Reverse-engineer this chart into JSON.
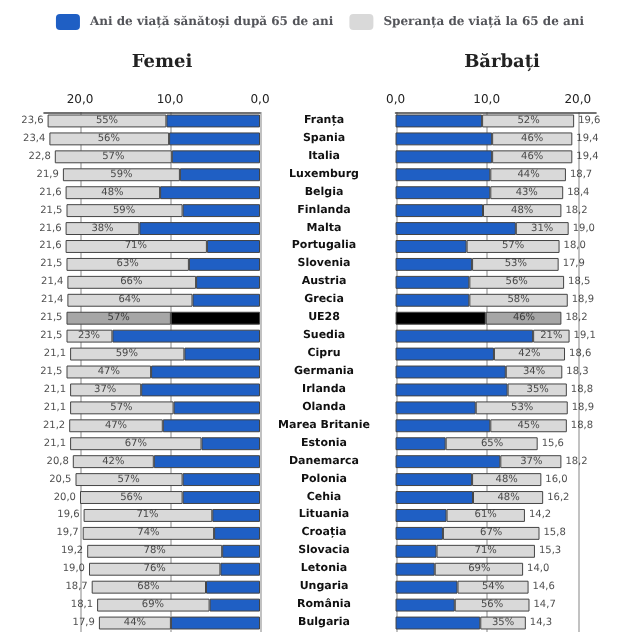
{
  "chart_data": [
    {
      "type": "bar",
      "title": "Femei",
      "orientation": "horizontal",
      "stacked": true,
      "grid": "x",
      "legend": "top",
      "categories": [
        "Franța",
        "Spania",
        "Italia",
        "Luxemburg",
        "Belgia",
        "Finlanda",
        "Malta",
        "Portugalia",
        "Slovenia",
        "Austria",
        "Grecia",
        "UE28",
        "Suedia",
        "Cipru",
        "Germania",
        "Irlanda",
        "Olanda",
        "Marea Britanie",
        "Estonia",
        "Danemarca",
        "Polonia",
        "Cehia",
        "Lituania",
        "Croația",
        "Slovacia",
        "Letonia",
        "Ungaria",
        "România",
        "Bulgaria"
      ],
      "xlim": [
        24,
        0
      ],
      "xticks": [
        {
          "value": 20,
          "label": "20,0"
        },
        {
          "value": 10,
          "label": "10,0"
        },
        {
          "value": 0,
          "label": "0,0"
        }
      ],
      "series": [
        {
          "name": "Ani de viață sănătoși după 65 de ani",
          "color": "#1f5fc4",
          "colors": [
            "#1f5fc4",
            "#1f5fc4",
            "#1f5fc4",
            "#1f5fc4",
            "#1f5fc4",
            "#1f5fc4",
            "#1f5fc4",
            "#1f5fc4",
            "#1f5fc4",
            "#1f5fc4",
            "#1f5fc4",
            "#000000",
            "#1f5fc4",
            "#1f5fc4",
            "#1f5fc4",
            "#1f5fc4",
            "#1f5fc4",
            "#1f5fc4",
            "#1f5fc4",
            "#1f5fc4",
            "#1f5fc4",
            "#1f5fc4",
            "#1f5fc4",
            "#1f5fc4",
            "#1f5fc4",
            "#1f5fc4",
            "#1f5fc4",
            "#1f5fc4",
            "#1f5fc4"
          ],
          "values": [
            10.4,
            10.1,
            9.8,
            8.9,
            11.1,
            8.6,
            13.4,
            5.9,
            7.9,
            7.1,
            7.5,
            9.9,
            16.4,
            8.4,
            12.1,
            13.2,
            9.6,
            10.8,
            6.5,
            11.8,
            8.6,
            8.6,
            5.3,
            5.1,
            4.2,
            4.4,
            6.0,
            5.6,
            9.9
          ]
        },
        {
          "name": "Speranța de viață la 65 de ani",
          "color": "#d9d9d9",
          "colors": [
            "#d9d9d9",
            "#d9d9d9",
            "#d9d9d9",
            "#d9d9d9",
            "#d9d9d9",
            "#d9d9d9",
            "#d9d9d9",
            "#d9d9d9",
            "#d9d9d9",
            "#d9d9d9",
            "#d9d9d9",
            "#a6a6a6",
            "#d9d9d9",
            "#d9d9d9",
            "#d9d9d9",
            "#d9d9d9",
            "#d9d9d9",
            "#d9d9d9",
            "#d9d9d9",
            "#d9d9d9",
            "#d9d9d9",
            "#d9d9d9",
            "#d9d9d9",
            "#d9d9d9",
            "#d9d9d9",
            "#d9d9d9",
            "#d9d9d9",
            "#d9d9d9",
            "#d9d9d9"
          ],
          "values": [
            13.2,
            13.3,
            13.0,
            13.0,
            10.5,
            12.9,
            8.2,
            15.7,
            13.6,
            14.3,
            13.9,
            11.6,
            5.1,
            12.7,
            9.4,
            7.9,
            11.5,
            10.4,
            14.6,
            9.0,
            11.9,
            11.4,
            14.3,
            14.6,
            15.0,
            14.6,
            12.7,
            12.5,
            8.0
          ]
        }
      ],
      "totals": [
        "23,6",
        "23,4",
        "22,8",
        "21,9",
        "21,6",
        "21,5",
        "21,6",
        "21,6",
        "21,5",
        "21,4",
        "21,4",
        "21,5",
        "21,5",
        "21,1",
        "21,5",
        "21,1",
        "21,1",
        "21,2",
        "21,1",
        "20,8",
        "20,5",
        "20,0",
        "19,6",
        "19,7",
        "19,2",
        "19,0",
        "18,7",
        "18,1",
        "17,9"
      ],
      "annotations": [
        {
          "text": "55%",
          "x": 17.0,
          "y": "Franța"
        },
        {
          "text": "56%",
          "x": 16.8,
          "y": "Spania"
        },
        {
          "text": "57%",
          "x": 16.3,
          "y": "Italia"
        },
        {
          "text": "59%",
          "x": 15.4,
          "y": "Luxemburg"
        },
        {
          "text": "48%",
          "x": 16.4,
          "y": "Belgia"
        },
        {
          "text": "59%",
          "x": 15.1,
          "y": "Finlanda"
        },
        {
          "text": "38%",
          "x": 17.5,
          "y": "Malta"
        },
        {
          "text": "71%",
          "x": 13.8,
          "y": "Portugalia"
        },
        {
          "text": "63%",
          "x": 14.7,
          "y": "Slovenia"
        },
        {
          "text": "66%",
          "x": 14.3,
          "y": "Austria"
        },
        {
          "text": "64%",
          "x": 14.5,
          "y": "Grecia"
        },
        {
          "text": "57%",
          "x": 15.7,
          "y": "UE28"
        },
        {
          "text": "23%",
          "x": 19.0,
          "y": "Suedia"
        },
        {
          "text": "59%",
          "x": 14.8,
          "y": "Cipru"
        },
        {
          "text": "47%",
          "x": 16.8,
          "y": "Germania"
        },
        {
          "text": "37%",
          "x": 17.2,
          "y": "Irlanda"
        },
        {
          "text": "57%",
          "x": 15.4,
          "y": "Olanda"
        },
        {
          "text": "47%",
          "x": 16.0,
          "y": "Marea Britanie"
        },
        {
          "text": "67%",
          "x": 13.8,
          "y": "Estonia"
        },
        {
          "text": "42%",
          "x": 16.3,
          "y": "Danemarca"
        },
        {
          "text": "57%",
          "x": 14.6,
          "y": "Polonia"
        },
        {
          "text": "56%",
          "x": 14.3,
          "y": "Cehia"
        },
        {
          "text": "71%",
          "x": 12.5,
          "y": "Lituania"
        },
        {
          "text": "74%",
          "x": 12.4,
          "y": "Croația"
        },
        {
          "text": "78%",
          "x": 11.7,
          "y": "Slovacia"
        },
        {
          "text": "76%",
          "x": 11.7,
          "y": "Letonia"
        },
        {
          "text": "68%",
          "x": 12.4,
          "y": "Ungaria"
        },
        {
          "text": "69%",
          "x": 11.9,
          "y": "România"
        },
        {
          "text": "44%",
          "x": 13.9,
          "y": "Bulgaria"
        }
      ]
    },
    {
      "type": "bar",
      "title": "Bărbați",
      "orientation": "horizontal",
      "stacked": true,
      "grid": "x",
      "tick_labels": "x",
      "categories": [
        "Franța",
        "Spania",
        "Italia",
        "Luxemburg",
        "Belgia",
        "Finlanda",
        "Malta",
        "Portugalia",
        "Slovenia",
        "Austria",
        "Grecia",
        "UE28",
        "Suedia",
        "Cipru",
        "Germania",
        "Irlanda",
        "Olanda",
        "Marea Britanie",
        "Estonia",
        "Danemarca",
        "Polonia",
        "Cehia",
        "Lituania",
        "Croația",
        "Slovacia",
        "Letonia",
        "Ungaria",
        "România",
        "Bulgaria"
      ],
      "xlim": [
        0,
        22
      ],
      "xticks": [
        {
          "value": 0,
          "label": "0,0"
        },
        {
          "value": 10,
          "label": "10,0"
        },
        {
          "value": 20,
          "label": "20,0"
        }
      ],
      "series": [
        {
          "color": "#1f5fc4",
          "colors": [
            "#1f5fc4",
            "#1f5fc4",
            "#1f5fc4",
            "#1f5fc4",
            "#1f5fc4",
            "#1f5fc4",
            "#1f5fc4",
            "#1f5fc4",
            "#1f5fc4",
            "#1f5fc4",
            "#1f5fc4",
            "#000000",
            "#1f5fc4",
            "#1f5fc4",
            "#1f5fc4",
            "#1f5fc4",
            "#1f5fc4",
            "#1f5fc4",
            "#1f5fc4",
            "#1f5fc4",
            "#1f5fc4",
            "#1f5fc4",
            "#1f5fc4",
            "#1f5fc4",
            "#1f5fc4",
            "#1f5fc4",
            "#1f5fc4",
            "#1f5fc4",
            "#1f5fc4"
          ],
          "values": [
            9.5,
            10.6,
            10.6,
            10.4,
            10.4,
            9.6,
            13.2,
            7.8,
            8.4,
            8.1,
            8.1,
            9.9,
            15.1,
            10.8,
            12.1,
            12.3,
            8.8,
            10.4,
            5.5,
            11.5,
            8.4,
            8.5,
            5.6,
            5.2,
            4.5,
            4.3,
            6.8,
            6.5,
            9.3
          ]
        },
        {
          "color": "#d9d9d9",
          "colors": [
            "#d9d9d9",
            "#d9d9d9",
            "#d9d9d9",
            "#d9d9d9",
            "#d9d9d9",
            "#d9d9d9",
            "#d9d9d9",
            "#d9d9d9",
            "#d9d9d9",
            "#d9d9d9",
            "#d9d9d9",
            "#a6a6a6",
            "#d9d9d9",
            "#d9d9d9",
            "#d9d9d9",
            "#d9d9d9",
            "#d9d9d9",
            "#d9d9d9",
            "#d9d9d9",
            "#d9d9d9",
            "#d9d9d9",
            "#d9d9d9",
            "#d9d9d9",
            "#d9d9d9",
            "#d9d9d9",
            "#d9d9d9",
            "#d9d9d9",
            "#d9d9d9",
            "#d9d9d9"
          ],
          "values": [
            10.1,
            8.8,
            8.8,
            8.3,
            8.0,
            8.6,
            5.8,
            10.2,
            9.5,
            10.4,
            10.8,
            8.3,
            4.0,
            7.8,
            6.2,
            6.5,
            10.1,
            8.4,
            10.1,
            6.7,
            7.6,
            7.7,
            8.6,
            10.6,
            10.8,
            9.7,
            7.8,
            8.2,
            5.0
          ]
        }
      ],
      "totals": [
        "19,6",
        "19,4",
        "19,4",
        "18,7",
        "18,4",
        "18,2",
        "19,0",
        "18,0",
        "17,9",
        "18,5",
        "18,9",
        "18,2",
        "19,1",
        "18,6",
        "18,3",
        "18,8",
        "18,9",
        "18,8",
        "15,6",
        "18,2",
        "16,0",
        "16,2",
        "14,2",
        "15,8",
        "15,3",
        "14,0",
        "14,6",
        "14,7",
        "14,3"
      ],
      "annotations": [
        {
          "text": "52%",
          "x": 14.6,
          "y": "Franța"
        },
        {
          "text": "46%",
          "x": 15.0,
          "y": "Spania"
        },
        {
          "text": "46%",
          "x": 15.0,
          "y": "Italia"
        },
        {
          "text": "44%",
          "x": 14.6,
          "y": "Luxemburg"
        },
        {
          "text": "43%",
          "x": 14.4,
          "y": "Belgia"
        },
        {
          "text": "48%",
          "x": 13.9,
          "y": "Finlanda"
        },
        {
          "text": "31%",
          "x": 16.1,
          "y": "Malta"
        },
        {
          "text": "57%",
          "x": 12.9,
          "y": "Portugalia"
        },
        {
          "text": "53%",
          "x": 13.2,
          "y": "Slovenia"
        },
        {
          "text": "56%",
          "x": 13.3,
          "y": "Austria"
        },
        {
          "text": "58%",
          "x": 13.5,
          "y": "Grecia"
        },
        {
          "text": "46%",
          "x": 14.1,
          "y": "UE28"
        },
        {
          "text": "21%",
          "x": 17.1,
          "y": "Suedia"
        },
        {
          "text": "42%",
          "x": 14.7,
          "y": "Cipru"
        },
        {
          "text": "34%",
          "x": 15.2,
          "y": "Germania"
        },
        {
          "text": "35%",
          "x": 15.6,
          "y": "Irlanda"
        },
        {
          "text": "53%",
          "x": 13.9,
          "y": "Olanda"
        },
        {
          "text": "45%",
          "x": 14.6,
          "y": "Marea Britanie"
        },
        {
          "text": "65%",
          "x": 10.6,
          "y": "Estonia"
        },
        {
          "text": "37%",
          "x": 14.9,
          "y": "Danemarca"
        },
        {
          "text": "48%",
          "x": 12.2,
          "y": "Polonia"
        },
        {
          "text": "48%",
          "x": 12.4,
          "y": "Cehia"
        },
        {
          "text": "61%",
          "x": 9.9,
          "y": "Lituania"
        },
        {
          "text": "67%",
          "x": 10.5,
          "y": "Croația"
        },
        {
          "text": "71%",
          "x": 9.9,
          "y": "Slovacia"
        },
        {
          "text": "69%",
          "x": 9.2,
          "y": "Letonia"
        },
        {
          "text": "54%",
          "x": 10.7,
          "y": "Ungaria"
        },
        {
          "text": "56%",
          "x": 10.6,
          "y": "România"
        },
        {
          "text": "35%",
          "x": 11.8,
          "y": "Bulgaria"
        }
      ]
    }
  ]
}
